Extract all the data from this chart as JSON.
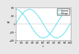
{
  "title": "",
  "xlabel": "t",
  "ylabel": "Vo",
  "xlim": [
    0,
    1000
  ],
  "ylim": [
    -400,
    400
  ],
  "x_ticks": [
    0,
    100,
    200,
    300,
    400,
    500,
    600,
    700,
    800,
    900,
    1000
  ],
  "y_ticks": [
    -400,
    -200,
    0,
    200,
    400
  ],
  "voltage_label": "Voltage",
  "current_label": "Current",
  "line_color": "#55ddee",
  "bg_color": "#e8e8e8",
  "plot_bg": "#ffffff",
  "n_points": 500,
  "current_amplitude": 350,
  "voltage_amplitude": 350,
  "frequency": 0.00628318,
  "current_phase": 0.0,
  "voltage_phase": -1.5707963
}
